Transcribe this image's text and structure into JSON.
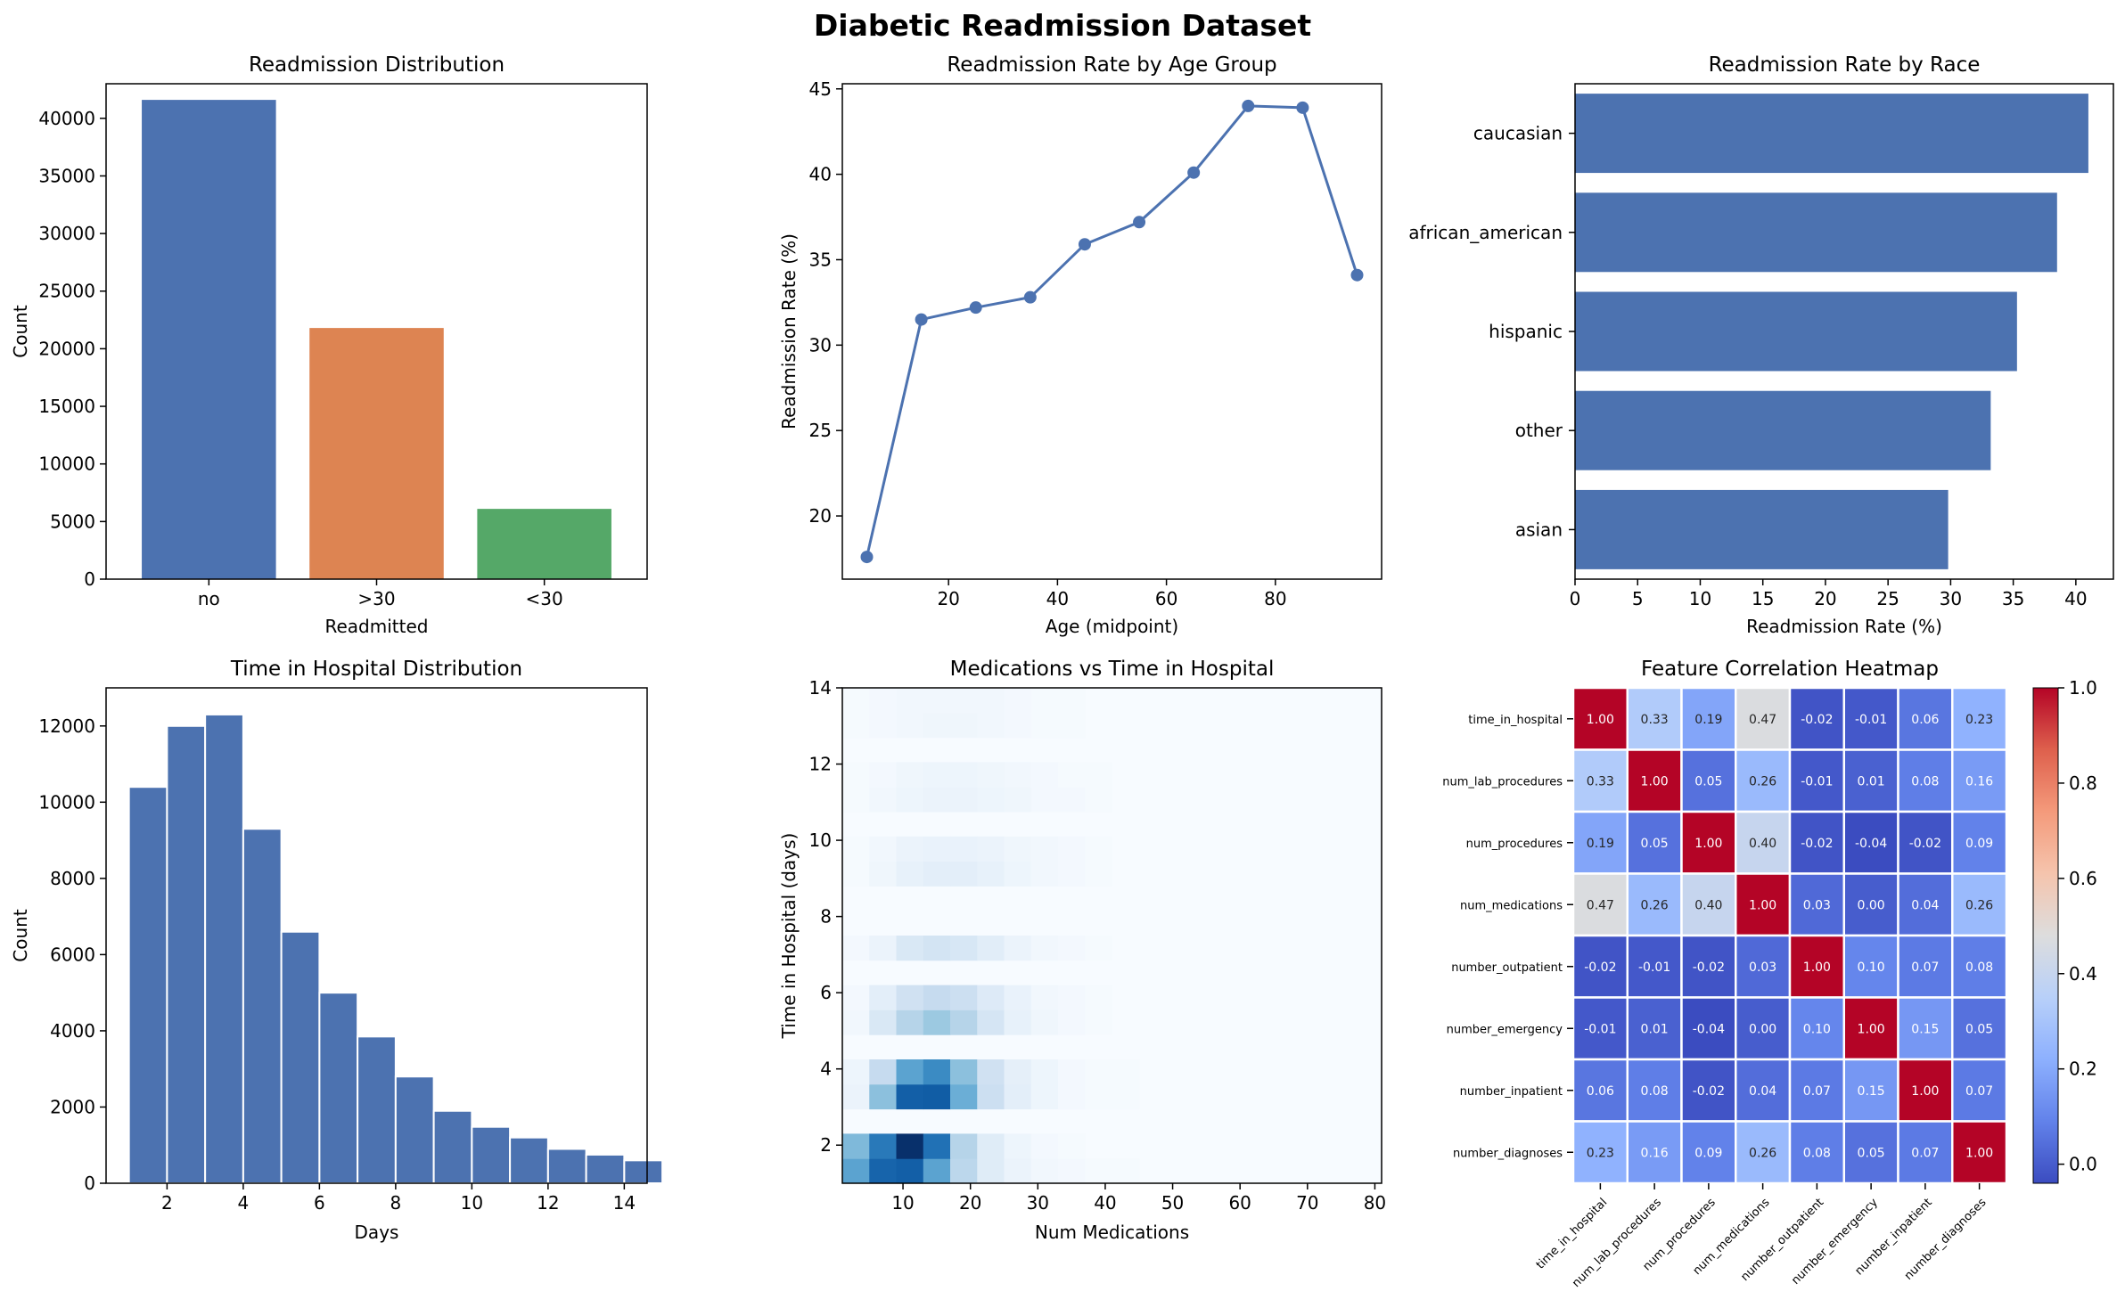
{
  "figure": {
    "title": "Diabetic Readmission Dataset"
  },
  "colors": {
    "blue": "#4c72b0",
    "orange": "#dd8452",
    "green": "#55a868",
    "hist_edge": "#ffffff"
  },
  "chart_data": [
    {
      "type": "bar",
      "title": "Readmission Distribution",
      "xlabel": "Readmitted",
      "ylabel": "Count",
      "categories": [
        "no",
        ">30",
        "<30"
      ],
      "values": [
        41600,
        21800,
        6100
      ],
      "colors": [
        "#4c72b0",
        "#dd8452",
        "#55a868"
      ],
      "ylim": [
        0,
        43000
      ],
      "yticks": [
        0,
        5000,
        10000,
        15000,
        20000,
        25000,
        30000,
        35000,
        40000
      ]
    },
    {
      "type": "line",
      "title": "Readmission Rate by Age Group",
      "xlabel": "Age (midpoint)",
      "ylabel": "Readmission Rate (%)",
      "x": [
        5,
        15,
        25,
        35,
        45,
        55,
        65,
        75,
        85,
        95
      ],
      "y": [
        17.6,
        31.5,
        32.2,
        32.8,
        35.9,
        37.2,
        40.1,
        44.0,
        43.9,
        34.1
      ],
      "xlim": [
        0.5,
        99.5
      ],
      "ylim": [
        16.3,
        45.3
      ],
      "xticks": [
        20,
        40,
        60,
        80
      ],
      "yticks": [
        20,
        25,
        30,
        35,
        40,
        45
      ]
    },
    {
      "type": "bar",
      "orientation": "horizontal",
      "title": "Readmission Rate by Race",
      "xlabel": "Readmission Rate (%)",
      "ylabel": "",
      "categories": [
        "caucasian",
        "african_american",
        "hispanic",
        "other",
        "asian"
      ],
      "values": [
        41.0,
        38.5,
        35.3,
        33.2,
        29.8
      ],
      "xlim": [
        0,
        43
      ],
      "xticks": [
        0,
        5,
        10,
        15,
        20,
        25,
        30,
        35,
        40
      ]
    },
    {
      "type": "bar",
      "subtype": "histogram",
      "title": "Time in Hospital Distribution",
      "xlabel": "Days",
      "ylabel": "Count",
      "bins": [
        1,
        2,
        3,
        4,
        5,
        6,
        7,
        8,
        9,
        10,
        11,
        12,
        13,
        14
      ],
      "values": [
        10400,
        12000,
        12300,
        9300,
        6600,
        5000,
        3850,
        2800,
        1900,
        1480,
        1200,
        900,
        750,
        600
      ],
      "xlim": [
        0.4,
        14.6
      ],
      "ylim": [
        0,
        13000
      ],
      "xticks": [
        2,
        4,
        6,
        8,
        10,
        12,
        14
      ],
      "yticks": [
        0,
        2000,
        4000,
        6000,
        8000,
        10000,
        12000
      ]
    },
    {
      "type": "heatmap",
      "subtype": "2d-histogram",
      "title": "Medications vs Time in Hospital",
      "xlabel": "Num Medications",
      "ylabel": "Time in Hospital (days)",
      "xlim": [
        1,
        81
      ],
      "ylim": [
        1,
        14
      ],
      "xticks": [
        10,
        20,
        30,
        40,
        50,
        60,
        70,
        80
      ],
      "yticks": [
        2,
        4,
        6,
        8,
        10,
        12,
        14
      ],
      "colormap": "Blues",
      "x_bin_edges": [
        1,
        5,
        9,
        13,
        17,
        21,
        25,
        29,
        33,
        37,
        41,
        45,
        49,
        53,
        57,
        61,
        65,
        69,
        73,
        77,
        81
      ],
      "y_bin_edges": [
        1,
        1.65,
        2.3,
        2.95,
        3.6,
        4.25,
        4.9,
        5.55,
        6.2,
        6.85,
        7.5,
        8.15,
        8.8,
        9.45,
        10.1,
        10.75,
        11.4,
        12.05,
        12.7,
        13.35,
        14
      ],
      "counts": [
        [
          0.55,
          0.8,
          0.82,
          0.55,
          0.28,
          0.12,
          0.06,
          0.03,
          0.02,
          0.01,
          0.01,
          0,
          0,
          0,
          0,
          0,
          0,
          0,
          0,
          0
        ],
        [
          0.45,
          0.72,
          1.0,
          0.75,
          0.3,
          0.12,
          0.05,
          0.02,
          0.01,
          0,
          0,
          0,
          0,
          0,
          0,
          0,
          0,
          0,
          0,
          0
        ],
        [
          0,
          0,
          0,
          0,
          0,
          0,
          0,
          0,
          0,
          0,
          0,
          0,
          0,
          0,
          0,
          0,
          0,
          0,
          0,
          0
        ],
        [
          0.06,
          0.42,
          0.82,
          0.83,
          0.5,
          0.22,
          0.1,
          0.05,
          0.02,
          0.01,
          0.01,
          0,
          0,
          0,
          0,
          0,
          0,
          0,
          0,
          0
        ],
        [
          0.05,
          0.25,
          0.55,
          0.65,
          0.42,
          0.2,
          0.09,
          0.05,
          0.02,
          0.01,
          0.01,
          0,
          0,
          0,
          0,
          0,
          0,
          0,
          0,
          0
        ],
        [
          0,
          0,
          0,
          0,
          0,
          0,
          0,
          0,
          0,
          0,
          0,
          0,
          0,
          0,
          0,
          0,
          0,
          0,
          0,
          0
        ],
        [
          0.03,
          0.15,
          0.3,
          0.38,
          0.3,
          0.17,
          0.08,
          0.04,
          0.02,
          0.01,
          0,
          0,
          0,
          0,
          0,
          0,
          0,
          0,
          0,
          0
        ],
        [
          0.02,
          0.1,
          0.2,
          0.25,
          0.22,
          0.13,
          0.07,
          0.03,
          0.02,
          0.01,
          0,
          0,
          0,
          0,
          0,
          0,
          0,
          0,
          0,
          0
        ],
        [
          0,
          0,
          0,
          0,
          0,
          0,
          0,
          0,
          0,
          0,
          0,
          0,
          0,
          0,
          0,
          0,
          0,
          0,
          0,
          0
        ],
        [
          0.02,
          0.06,
          0.15,
          0.18,
          0.16,
          0.11,
          0.06,
          0.03,
          0.02,
          0.01,
          0,
          0,
          0,
          0,
          0,
          0,
          0,
          0,
          0,
          0
        ],
        [
          0,
          0,
          0,
          0,
          0,
          0,
          0,
          0,
          0,
          0,
          0,
          0,
          0,
          0,
          0,
          0,
          0,
          0,
          0,
          0
        ],
        [
          0,
          0,
          0,
          0,
          0,
          0,
          0,
          0,
          0,
          0,
          0,
          0,
          0,
          0,
          0,
          0,
          0,
          0,
          0,
          0
        ],
        [
          0.01,
          0.04,
          0.08,
          0.1,
          0.1,
          0.08,
          0.05,
          0.03,
          0.02,
          0.01,
          0,
          0,
          0,
          0,
          0,
          0,
          0,
          0,
          0,
          0
        ],
        [
          0.01,
          0.03,
          0.06,
          0.07,
          0.07,
          0.06,
          0.04,
          0.03,
          0.02,
          0.01,
          0,
          0,
          0,
          0,
          0,
          0,
          0,
          0,
          0,
          0
        ],
        [
          0,
          0,
          0,
          0,
          0,
          0,
          0,
          0,
          0,
          0,
          0,
          0,
          0,
          0,
          0,
          0,
          0,
          0,
          0,
          0
        ],
        [
          0.01,
          0.03,
          0.05,
          0.06,
          0.06,
          0.05,
          0.04,
          0.02,
          0.02,
          0.01,
          0,
          0,
          0,
          0,
          0,
          0,
          0,
          0,
          0,
          0
        ],
        [
          0.01,
          0.02,
          0.04,
          0.05,
          0.05,
          0.04,
          0.03,
          0.02,
          0.01,
          0.01,
          0,
          0,
          0,
          0,
          0,
          0,
          0,
          0,
          0,
          0
        ],
        [
          0,
          0,
          0,
          0,
          0,
          0,
          0,
          0,
          0,
          0,
          0,
          0,
          0,
          0,
          0,
          0,
          0,
          0,
          0,
          0
        ],
        [
          0.01,
          0.02,
          0.03,
          0.04,
          0.04,
          0.03,
          0.02,
          0.01,
          0.01,
          0,
          0,
          0,
          0,
          0,
          0,
          0,
          0,
          0,
          0,
          0
        ],
        [
          0.01,
          0.02,
          0.03,
          0.03,
          0.03,
          0.03,
          0.02,
          0.01,
          0.01,
          0,
          0,
          0,
          0,
          0,
          0,
          0,
          0,
          0,
          0,
          0
        ]
      ]
    },
    {
      "type": "heatmap",
      "title": "Feature Correlation Heatmap",
      "labels": [
        "time_in_hospital",
        "num_lab_procedures",
        "num_procedures",
        "num_medications",
        "number_outpatient",
        "number_emergency",
        "number_inpatient",
        "number_diagnoses"
      ],
      "matrix": [
        [
          1.0,
          0.33,
          0.19,
          0.47,
          -0.02,
          -0.01,
          0.06,
          0.23
        ],
        [
          0.33,
          1.0,
          0.05,
          0.26,
          -0.01,
          0.01,
          0.08,
          0.16
        ],
        [
          0.19,
          0.05,
          1.0,
          0.4,
          -0.02,
          -0.04,
          -0.02,
          0.09
        ],
        [
          0.47,
          0.26,
          0.4,
          1.0,
          0.03,
          0.0,
          0.04,
          0.26
        ],
        [
          -0.02,
          -0.01,
          -0.02,
          0.03,
          1.0,
          0.1,
          0.07,
          0.08
        ],
        [
          -0.01,
          0.01,
          -0.04,
          0.0,
          0.1,
          1.0,
          0.15,
          0.05
        ],
        [
          0.06,
          0.08,
          -0.02,
          0.04,
          0.07,
          0.15,
          1.0,
          0.07
        ],
        [
          0.23,
          0.16,
          0.09,
          0.26,
          0.08,
          0.05,
          0.07,
          1.0
        ]
      ],
      "colormap": "coolwarm",
      "vmin": -0.04,
      "vmax": 1.0,
      "colorbar_ticks": [
        0.0,
        0.2,
        0.4,
        0.6,
        0.8,
        1.0
      ]
    }
  ]
}
